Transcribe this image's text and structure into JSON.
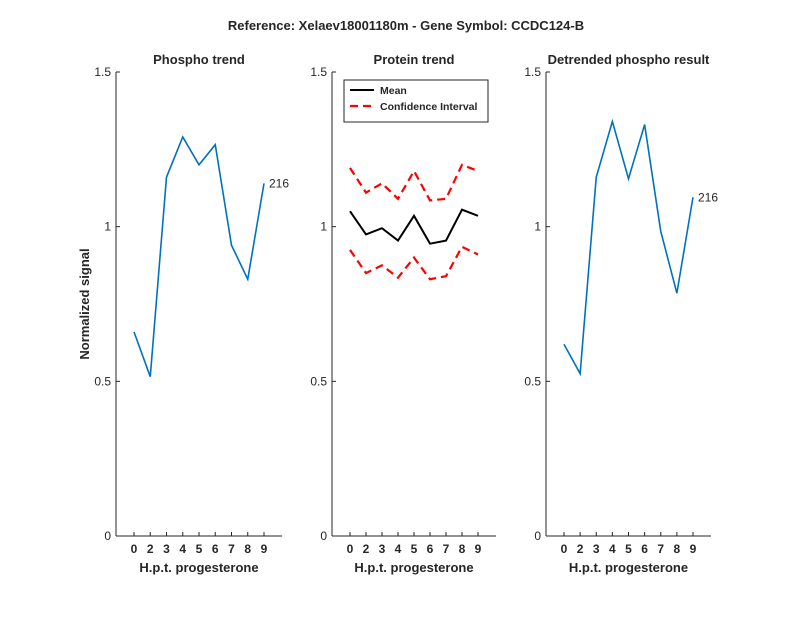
{
  "figure": {
    "suptitle": "Reference:  Xelaev18001180m - Gene Symbol:  CCDC124-B"
  },
  "colors": {
    "phospho_line": "#0072BD",
    "mean_line": "#000000",
    "ci_line": "#FF0000",
    "axis": "#262626"
  },
  "chart_data": [
    {
      "type": "line",
      "title": "Phospho trend",
      "xlabel": "H.p.t. progesterone",
      "ylabel": "Normalized signal",
      "categories": [
        "0",
        "2",
        "3",
        "4",
        "5",
        "6",
        "7",
        "8",
        "9"
      ],
      "ylim": [
        0,
        1.5
      ],
      "yticks": [
        "0",
        "0.5",
        "1",
        "1.5"
      ],
      "grid": false,
      "series": [
        {
          "values": [
            0.66,
            0.515,
            1.16,
            1.29,
            1.2,
            1.265,
            0.94,
            0.83,
            1.14
          ],
          "style": "solid",
          "color": "#0072BD"
        }
      ],
      "annotations": [
        {
          "text": "216",
          "at_index": 8
        }
      ]
    },
    {
      "type": "line",
      "title": "Protein trend",
      "xlabel": "H.p.t. progesterone",
      "ylabel": "",
      "categories": [
        "0",
        "2",
        "3",
        "4",
        "5",
        "6",
        "7",
        "8",
        "9"
      ],
      "ylim": [
        0,
        1.5
      ],
      "yticks": [
        "0",
        "0.5",
        "1",
        "1.5"
      ],
      "grid": false,
      "legend": {
        "placement": "top-left"
      },
      "series": [
        {
          "name": "Mean",
          "values": [
            1.05,
            0.975,
            0.995,
            0.955,
            1.035,
            0.945,
            0.955,
            1.055,
            1.035
          ],
          "style": "solid",
          "color": "#000000"
        },
        {
          "name": "Confidence Interval",
          "values": [
            1.19,
            1.11,
            1.14,
            1.09,
            1.18,
            1.085,
            1.09,
            1.2,
            1.18
          ],
          "style": "dashed",
          "color": "#FF0000"
        },
        {
          "values": [
            0.925,
            0.85,
            0.875,
            0.835,
            0.9,
            0.83,
            0.84,
            0.935,
            0.91
          ],
          "style": "dashed",
          "color": "#FF0000"
        }
      ]
    },
    {
      "type": "line",
      "title": "Detrended phospho result",
      "xlabel": "H.p.t. progesterone",
      "ylabel": "",
      "categories": [
        "0",
        "2",
        "3",
        "4",
        "5",
        "6",
        "7",
        "8",
        "9"
      ],
      "ylim": [
        0,
        1.5
      ],
      "yticks": [
        "0",
        "0.5",
        "1",
        "1.5"
      ],
      "grid": false,
      "series": [
        {
          "values": [
            0.62,
            0.525,
            1.16,
            1.34,
            1.155,
            1.33,
            0.985,
            0.785,
            1.095
          ],
          "style": "solid",
          "color": "#0072BD"
        }
      ],
      "annotations": [
        {
          "text": "216",
          "at_index": 8
        }
      ]
    }
  ]
}
